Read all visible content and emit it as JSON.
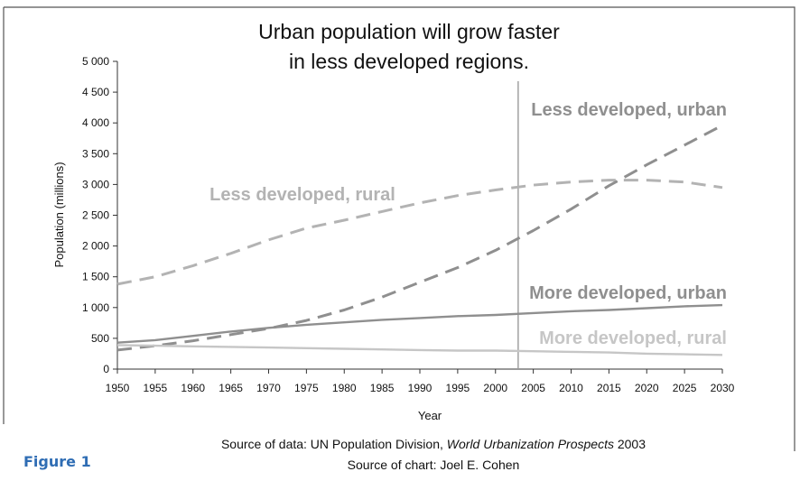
{
  "figure_label": "Figure 1",
  "source_data": {
    "prefix": "Source of data: UN Population Division, ",
    "italic": "World Urbanization Prospects",
    "suffix": " 2003"
  },
  "source_chart": "Source of chart: Joel E. Cohen",
  "colors": {
    "frame": "#555555",
    "ld_rural": "#b3b3b3",
    "ld_urban": "#8f8f8f",
    "md_urban": "#8f8f8f",
    "md_rural": "#c6c6c6",
    "divider": "#9a9a9a"
  },
  "chart_data": {
    "type": "line",
    "title_lines": [
      "Urban population will grow faster",
      "in less developed regions."
    ],
    "xlabel": "Year",
    "ylabel": "Population (millions)",
    "xlim": [
      1950,
      2030
    ],
    "ylim": [
      0,
      5000
    ],
    "xticks": [
      1950,
      1955,
      1960,
      1965,
      1970,
      1975,
      1980,
      1985,
      1990,
      1995,
      2000,
      2005,
      2010,
      2015,
      2020,
      2025,
      2030
    ],
    "yticks": [
      0,
      500,
      1000,
      1500,
      2000,
      2500,
      3000,
      3500,
      4000,
      4500,
      5000
    ],
    "ytick_labels": [
      "0",
      "500",
      "1 000",
      "1 500",
      "2 000",
      "2 500",
      "3 000",
      "3 500",
      "4 000",
      "4 500",
      "5 000"
    ],
    "divider_x": 2003,
    "x": [
      1950,
      1955,
      1960,
      1965,
      1970,
      1975,
      1980,
      1985,
      1990,
      1995,
      2000,
      2005,
      2010,
      2015,
      2020,
      2025,
      2030
    ],
    "series": [
      {
        "name": "Less developed, rural",
        "style": "dashed",
        "color_key": "ld_rural",
        "values": [
          1380,
          1500,
          1680,
          1880,
          2100,
          2290,
          2420,
          2560,
          2700,
          2820,
          2910,
          2990,
          3040,
          3070,
          3070,
          3040,
          2950
        ]
      },
      {
        "name": "Less developed, urban",
        "style": "dashed",
        "color_key": "ld_urban",
        "values": [
          310,
          380,
          460,
          560,
          660,
          790,
          960,
          1170,
          1410,
          1650,
          1930,
          2250,
          2600,
          2980,
          3320,
          3640,
          3960
        ]
      },
      {
        "name": "More developed, urban",
        "style": "solid",
        "color_key": "md_urban",
        "values": [
          430,
          470,
          540,
          610,
          670,
          720,
          760,
          800,
          830,
          860,
          880,
          910,
          940,
          960,
          990,
          1020,
          1040
        ]
      },
      {
        "name": "More developed, rural",
        "style": "solid",
        "color_key": "md_rural",
        "values": [
          390,
          380,
          370,
          360,
          350,
          340,
          330,
          320,
          310,
          300,
          300,
          290,
          280,
          270,
          250,
          240,
          230
        ]
      }
    ]
  }
}
